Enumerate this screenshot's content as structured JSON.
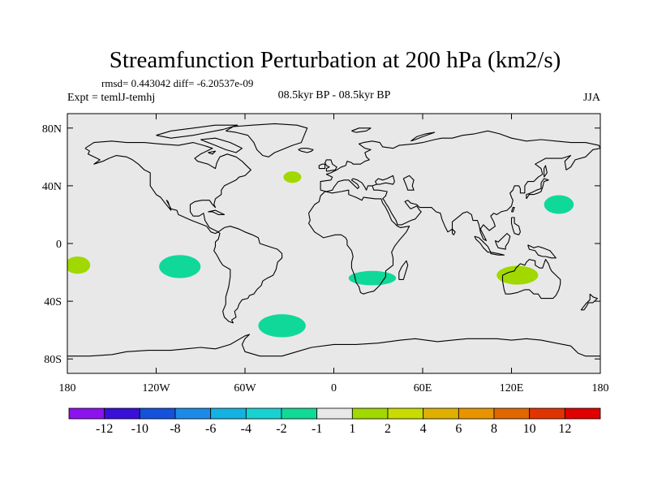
{
  "chart_data": {
    "type": "heatmap",
    "title": "Streamfunction Perturbation at 200 hPa (km2/s)",
    "stats": "rmsd= 0.443042 diff= -6.20537e-09",
    "left_label": "Expt = temlJ-temhj",
    "center_label": "08.5kyr BP - 08.5kyr BP",
    "right_label": "JJA",
    "projection": "cylindrical-equidistant",
    "lon_range": [
      -180,
      180
    ],
    "lat_range": [
      -90,
      90
    ],
    "x_ticks": [
      {
        "value": -180,
        "label": "180"
      },
      {
        "value": -120,
        "label": "120W"
      },
      {
        "value": -60,
        "label": "60W"
      },
      {
        "value": 0,
        "label": "0"
      },
      {
        "value": 60,
        "label": "60E"
      },
      {
        "value": 120,
        "label": "120E"
      },
      {
        "value": 180,
        "label": "180"
      }
    ],
    "y_ticks": [
      {
        "value": 80,
        "label": "80N"
      },
      {
        "value": 40,
        "label": "40N"
      },
      {
        "value": 0,
        "label": "0"
      },
      {
        "value": -40,
        "label": "40S"
      },
      {
        "value": -80,
        "label": "80S"
      }
    ],
    "background_color": "#e8e8e8",
    "anomaly_regions": [
      {
        "name": "north-atlantic",
        "lon": -28,
        "lat": 46,
        "lon_radius": 6,
        "lat_radius": 4,
        "level": "1 to 2",
        "color": "#a0d800"
      },
      {
        "name": "northwest-pacific",
        "lon": 152,
        "lat": 27,
        "lon_radius": 10,
        "lat_radius": 6.5,
        "level": "-2 to -1",
        "color": "#10d898"
      },
      {
        "name": "south-pacific-west",
        "lon": -173,
        "lat": -15,
        "lon_radius": 8.5,
        "lat_radius": 6,
        "level": "1 to 2",
        "color": "#a0d800"
      },
      {
        "name": "south-pacific-east",
        "lon": -104,
        "lat": -16,
        "lon_radius": 14,
        "lat_radius": 8,
        "level": "-2 to -1",
        "color": "#10d898"
      },
      {
        "name": "southern-africa",
        "lon": 26,
        "lat": -24,
        "lon_radius": 16,
        "lat_radius": 5,
        "level": "-2 to -1",
        "color": "#10d898"
      },
      {
        "name": "australia",
        "lon": 124,
        "lat": -22,
        "lon_radius": 14,
        "lat_radius": 6.5,
        "level": "1 to 2",
        "color": "#a0d800"
      },
      {
        "name": "south-atlantic",
        "lon": -35,
        "lat": -57,
        "lon_radius": 16,
        "lat_radius": 8,
        "level": "-2 to -1",
        "color": "#10d898"
      }
    ],
    "colorbar": {
      "colors": [
        "#8c12ee",
        "#3a0fd8",
        "#1452dc",
        "#1c8ae6",
        "#14b2e2",
        "#18d2d2",
        "#10da98",
        "#e8e8e8",
        "#a0d800",
        "#c8dc00",
        "#e0b000",
        "#e89400",
        "#e06800",
        "#e03400",
        "#e00000"
      ],
      "labels": [
        "-12",
        "-10",
        "-8",
        "-6",
        "-4",
        "-2",
        "-1",
        "1",
        "2",
        "4",
        "6",
        "8",
        "10",
        "12"
      ]
    }
  }
}
